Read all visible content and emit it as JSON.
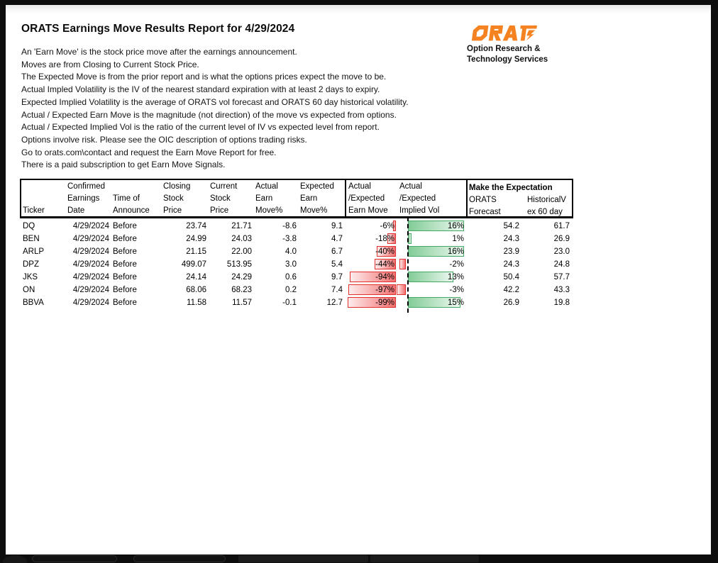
{
  "report": {
    "title": "ORATS Earnings Move Results Report for 4/29/2024"
  },
  "intro": {
    "lines": [
      "An 'Earn Move' is the stock price move after the earnings announcement.",
      "Moves are from Closing to Current Stock Price.",
      "The Expected Move is from the prior report and is what the options prices expect the move to be.",
      "Actual Impled Volatility is the IV of the nearest standard expiration with at least 2 days to expiry.",
      "Expected Implied Volatility is the average of ORATS vol forecast and ORATS 60 day historical volatility.",
      "Actual / Expected Earn Move is the magnitude (not direction) of the move vs expected from options.",
      "Actual / Expected Implied Vol is the ratio of the current level of IV vs expected level from report.",
      "Options involve risk. Please see the OIC description of options trading risks.",
      "Go to orats.com\\contact and request the Earn Move Report for free.",
      "There is a paid subscription to get Earn Move Signals."
    ]
  },
  "logo": {
    "brand": "ORATS",
    "tagline_line1": "Option Research &",
    "tagline_line2": "Technology Services"
  },
  "colors": {
    "brand-orange": "#F58220",
    "bar-negative-border": "#E02F2F",
    "bar-negative-fill-light": "#FDECEC",
    "bar-negative-fill-deep": "#F47171",
    "bar-positive-border": "#43A963",
    "bar-positive-fill-deep": "#82CC96",
    "bar-positive-fill-light": "#EDF8F1",
    "axis-color": "#000000"
  },
  "table": {
    "col_headers": [
      "Ticker",
      "Confirmed\nEarnings\nDate",
      "Time of\nAnnounce",
      "Closing\nStock\nPrice",
      "Current\nStock\nPrice",
      "Actual\nEarn\nMove%",
      "Expected\nEarn\nMove%",
      "Actual\n/Expected\nEarn Move",
      "Actual\n/Expected\nImplied Vol"
    ],
    "group_header": {
      "title": "Make the Expectation",
      "sub_forecast": "ORATS\nForecast",
      "sub_hist": "HistoricalV\nex 60 day"
    },
    "rows": [
      {
        "ticker": "DQ",
        "date": "4/29/2024",
        "announce": "Before",
        "closing": "23.74",
        "current": "21.71",
        "actual_move": "-8.6",
        "expected_move": "9.1",
        "earn_move_pct": -6,
        "implied_vol_pct": 16,
        "orats_forecast": "54.2",
        "hist_vol": "61.7"
      },
      {
        "ticker": "BEN",
        "date": "4/29/2024",
        "announce": "Before",
        "closing": "24.99",
        "current": "24.03",
        "actual_move": "-3.8",
        "expected_move": "4.7",
        "earn_move_pct": -18,
        "implied_vol_pct": 1,
        "orats_forecast": "24.3",
        "hist_vol": "26.9"
      },
      {
        "ticker": "ARLP",
        "date": "4/29/2024",
        "announce": "Before",
        "closing": "21.15",
        "current": "22.00",
        "actual_move": "4.0",
        "expected_move": "6.7",
        "earn_move_pct": -40,
        "implied_vol_pct": 16,
        "orats_forecast": "23.9",
        "hist_vol": "23.0"
      },
      {
        "ticker": "DPZ",
        "date": "4/29/2024",
        "announce": "Before",
        "closing": "499.07",
        "current": "513.95",
        "actual_move": "3.0",
        "expected_move": "5.4",
        "earn_move_pct": -44,
        "implied_vol_pct": -2,
        "orats_forecast": "24.3",
        "hist_vol": "24.8"
      },
      {
        "ticker": "JKS",
        "date": "4/29/2024",
        "announce": "Before",
        "closing": "24.14",
        "current": "24.29",
        "actual_move": "0.6",
        "expected_move": "9.7",
        "earn_move_pct": -94,
        "implied_vol_pct": 13,
        "orats_forecast": "50.4",
        "hist_vol": "57.7"
      },
      {
        "ticker": "ON",
        "date": "4/29/2024",
        "announce": "Before",
        "closing": "68.06",
        "current": "68.23",
        "actual_move": "0.2",
        "expected_move": "7.4",
        "earn_move_pct": -97,
        "implied_vol_pct": -3,
        "orats_forecast": "42.2",
        "hist_vol": "43.3"
      },
      {
        "ticker": "BBVA",
        "date": "4/29/2024",
        "announce": "Before",
        "closing": "11.58",
        "current": "11.57",
        "actual_move": "-0.1",
        "expected_move": "12.7",
        "earn_move_pct": -99,
        "implied_vol_pct": 15,
        "orats_forecast": "26.9",
        "hist_vol": "19.8"
      }
    ]
  }
}
